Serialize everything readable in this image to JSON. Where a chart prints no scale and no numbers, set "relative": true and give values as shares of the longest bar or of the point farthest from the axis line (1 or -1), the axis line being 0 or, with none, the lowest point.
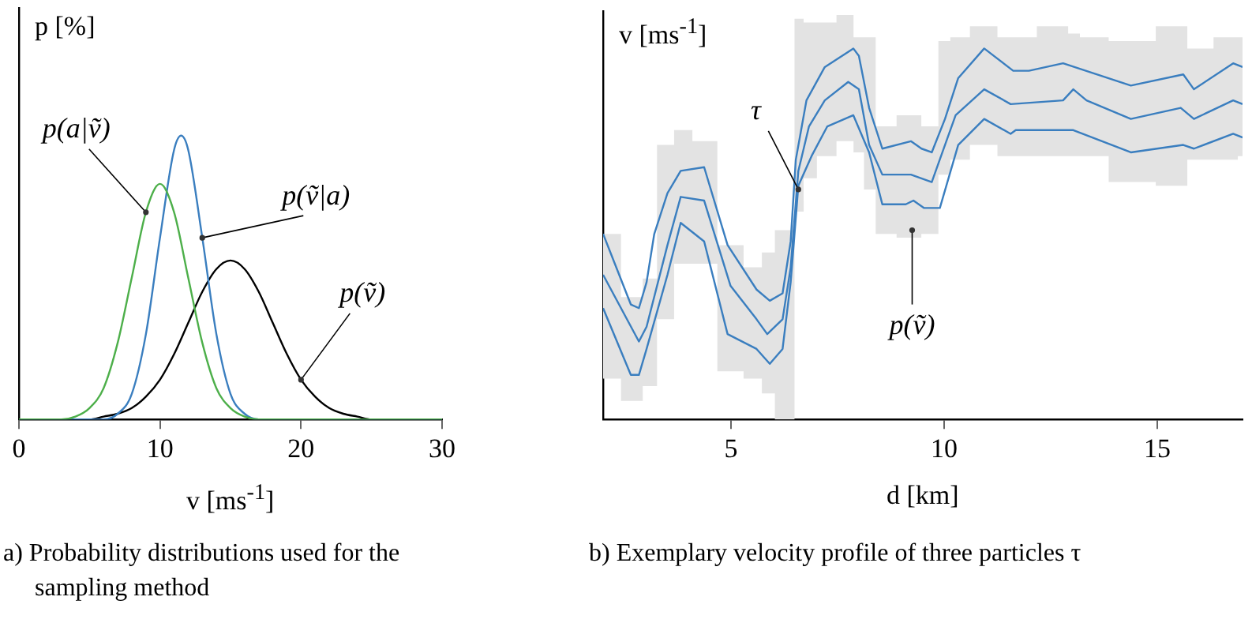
{
  "chart_data": [
    {
      "type": "line",
      "title": "a) Probability distributions used for the sampling method",
      "xlabel": "v [ms$^{-1}$]",
      "ylabel": "p [%]",
      "relative": true,
      "tick_labels": "x",
      "xlim": [
        0,
        30
      ],
      "xticks": [
        0,
        10,
        20,
        30
      ],
      "series": [
        {
          "color": "#4daf4a",
          "x": [
            0,
            2,
            3,
            4,
            5,
            6,
            7,
            8,
            9,
            10,
            11,
            12,
            13,
            14,
            15,
            16,
            17,
            18,
            30
          ],
          "values": [
            0,
            0,
            0,
            0.01,
            0.04,
            0.11,
            0.27,
            0.5,
            0.73,
            0.83,
            0.73,
            0.5,
            0.27,
            0.11,
            0.04,
            0.01,
            0,
            0,
            0
          ]
        },
        {
          "color": "#3a7ebf",
          "x": [
            0,
            6,
            7,
            8,
            9,
            10,
            11,
            11.5,
            12,
            13,
            14,
            15,
            16,
            17,
            18,
            30
          ],
          "values": [
            0,
            0,
            0.02,
            0.09,
            0.3,
            0.64,
            0.95,
            1,
            0.95,
            0.64,
            0.3,
            0.09,
            0.02,
            0,
            0,
            0
          ]
        },
        {
          "color": "#000000",
          "x": [
            0,
            5,
            6,
            7,
            8,
            9,
            10,
            11,
            12,
            13,
            14,
            15,
            16,
            17,
            18,
            19,
            20,
            21,
            22,
            23,
            24,
            25,
            30
          ],
          "values": [
            0,
            0,
            0.01,
            0.02,
            0.04,
            0.08,
            0.14,
            0.23,
            0.34,
            0.45,
            0.53,
            0.56,
            0.53,
            0.45,
            0.34,
            0.23,
            0.14,
            0.08,
            0.04,
            0.02,
            0.01,
            0,
            0
          ]
        }
      ],
      "annotations": [
        {
          "text": "p(a|ṽ)",
          "x": 9,
          "y": 0.73
        },
        {
          "text": "p(ṽ|a)",
          "x": 13,
          "y": 0.64
        },
        {
          "text": "p(ṽ)",
          "x": 20,
          "y": 0.14
        }
      ]
    },
    {
      "type": "line",
      "title": "b) Exemplary velocity profile of three particles τ",
      "xlabel": "d [km]",
      "ylabel": "v [ms$^{-1}$]",
      "relative": true,
      "tick_labels": "x",
      "xlim": [
        2,
        17
      ],
      "xticks": [
        5,
        10,
        15
      ],
      "series": [
        {
          "color": "#3a7ebf",
          "x": [
            2,
            2.65,
            2.84,
            3.02,
            3.2,
            3.51,
            3.82,
            4.37,
            4.92,
            5.6,
            5.91,
            6.21,
            6.4,
            6.52,
            6.77,
            7.2,
            7.87,
            8,
            8.24,
            8.55,
            9.22,
            9.47,
            9.71,
            10.02,
            10.33,
            10.94,
            11.62,
            11.99,
            12.79,
            14.38,
            15.61,
            15.86,
            16.78,
            17
          ],
          "values": [
            0.5,
            0.31,
            0.3,
            0.37,
            0.5,
            0.61,
            0.67,
            0.68,
            0.47,
            0.35,
            0.32,
            0.34,
            0.48,
            0.7,
            0.86,
            0.95,
            1,
            0.98,
            0.84,
            0.73,
            0.75,
            0.73,
            0.72,
            0.81,
            0.92,
            1,
            0.94,
            0.94,
            0.96,
            0.9,
            0.93,
            0.89,
            0.96,
            0.95
          ]
        },
        {
          "color": "#3a7ebf",
          "x": [
            2,
            2.84,
            3.02,
            3.51,
            3.82,
            4.37,
            4.99,
            5.6,
            5.85,
            6.21,
            6.4,
            6.58,
            6.83,
            7.2,
            7.75,
            8,
            8.24,
            8.55,
            9.22,
            9.71,
            10.02,
            10.27,
            10.94,
            11.56,
            12.79,
            13.03,
            13.34,
            14.38,
            15.55,
            15.86,
            16.78,
            17
          ],
          "values": [
            0.39,
            0.21,
            0.25,
            0.47,
            0.6,
            0.59,
            0.36,
            0.27,
            0.23,
            0.27,
            0.41,
            0.67,
            0.79,
            0.86,
            0.91,
            0.89,
            0.74,
            0.66,
            0.66,
            0.64,
            0.74,
            0.82,
            0.89,
            0.85,
            0.86,
            0.89,
            0.86,
            0.81,
            0.84,
            0.81,
            0.86,
            0.85
          ],
          "lower": [
            0.11,
            0.05,
            0.09,
            0.27,
            0.42,
            0.42,
            0.13,
            0.11,
            0.07,
            0,
            0,
            0.56,
            0.65,
            0.71,
            0.75,
            0.72,
            0.62,
            0.5,
            0.49,
            0.5,
            0.66,
            0.7,
            0.74,
            0.71,
            0.71,
            0.71,
            0.71,
            0.64,
            0.63,
            0.7,
            0.7,
            0.71
          ],
          "upper": [
            0.5,
            0.33,
            0.38,
            0.74,
            0.78,
            0.75,
            0.47,
            0.41,
            0.45,
            0.51,
            0.51,
            1.08,
            1.07,
            1.07,
            1.09,
            1.03,
            1.03,
            0.79,
            0.82,
            0.79,
            1.02,
            1.03,
            1.06,
            1.03,
            1.06,
            1.04,
            1.03,
            1.02,
            1.06,
            1,
            1.03,
            1.03
          ]
        },
        {
          "color": "#3a7ebf",
          "x": [
            2,
            2.65,
            2.84,
            3.02,
            3.51,
            3.82,
            4.37,
            4.92,
            5.6,
            5.91,
            6.21,
            6.4,
            6.58,
            6.89,
            7.26,
            7.87,
            8.24,
            8.55,
            9.1,
            9.28,
            9.53,
            9.9,
            10.33,
            10.94,
            11.56,
            11.68,
            13.03,
            14.38,
            15.61,
            15.86,
            16.78,
            17
          ],
          "values": [
            0.3,
            0.12,
            0.12,
            0.19,
            0.39,
            0.53,
            0.48,
            0.23,
            0.19,
            0.15,
            0.19,
            0.37,
            0.63,
            0.71,
            0.79,
            0.82,
            0.72,
            0.58,
            0.58,
            0.59,
            0.57,
            0.57,
            0.74,
            0.81,
            0.77,
            0.78,
            0.78,
            0.72,
            0.74,
            0.73,
            0.77,
            0.76
          ]
        }
      ],
      "annotations": [
        {
          "text": "τ",
          "x": 6.58,
          "y": 0.62
        },
        {
          "text": "p(ṽ)",
          "x": 9.25,
          "y": 0.51
        }
      ]
    }
  ]
}
